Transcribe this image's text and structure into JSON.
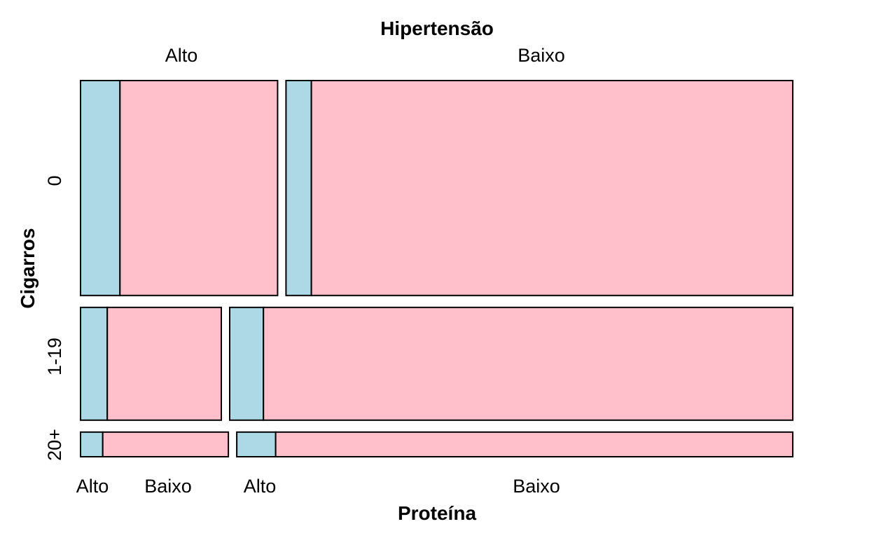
{
  "chart_data": {
    "type": "mosaic",
    "title": "",
    "xlabel": "Proteína",
    "ylabel": "Cigarros",
    "top_variable": "Hipertensão",
    "top_levels": [
      "Alto",
      "Baixo"
    ],
    "row_levels": [
      "0",
      "1-19",
      "20+"
    ],
    "fill_levels": [
      "Alto",
      "Baixo"
    ],
    "colors": {
      "Alto": "#add8e6",
      "Baixo": "#ffc0cb"
    },
    "cells": [
      {
        "cigarros": "0",
        "hipertensao": "Alto",
        "proteina_alto_pct": 20,
        "proteina_baixo_pct": 80
      },
      {
        "cigarros": "0",
        "hipertensao": "Baixo",
        "proteina_alto_pct": 5,
        "proteina_baixo_pct": 95
      },
      {
        "cigarros": "1-19",
        "hipertensao": "Alto",
        "proteina_alto_pct": 19,
        "proteina_baixo_pct": 81
      },
      {
        "cigarros": "1-19",
        "hipertensao": "Baixo",
        "proteina_alto_pct": 6,
        "proteina_baixo_pct": 94
      },
      {
        "cigarros": "20+",
        "hipertensao": "Alto",
        "proteina_alto_pct": 15,
        "proteina_baixo_pct": 85
      },
      {
        "cigarros": "20+",
        "hipertensao": "Baixo",
        "proteina_alto_pct": 7,
        "proteina_baixo_pct": 93
      }
    ],
    "row_share_pct": {
      "0": 61,
      "1-19": 32,
      "20+": 7
    },
    "hipertensao_alto_share_pct": {
      "0": 28,
      "1-19": 20,
      "20+": 21
    },
    "bottom_tick_labels": [
      "Alto",
      "Baixo",
      "Alto",
      "Baixo"
    ],
    "grid": false,
    "legend": "none"
  }
}
